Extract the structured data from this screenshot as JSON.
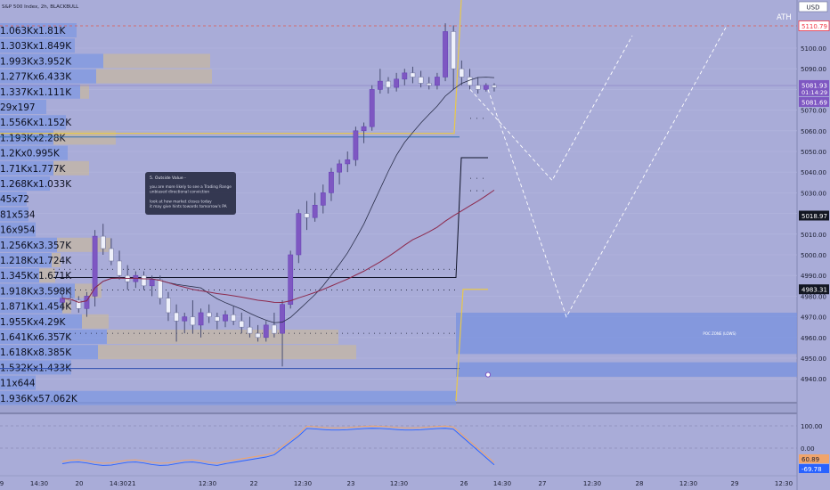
{
  "header": {
    "title": "S&P 500 Index, 2h, BLACKBULL",
    "currency": "USD",
    "ath_label": "ATH"
  },
  "annotation": {
    "title": "5. Outside Value -",
    "lines": [
      "you are more likely to see a Trading Range",
      "unbiased directional conviction",
      "",
      "look at how market closes today",
      "it may give hints towards tomorrow's PA"
    ]
  },
  "poc_zone_label": "POC ZONE (LOWS)",
  "chart_data": {
    "type": "candlestick",
    "title": "S&P 500 Index, 2h, BLACKBULL",
    "ylim": [
      4940,
      5115
    ],
    "price_ticks": [
      5100,
      5090,
      5080,
      5070,
      5060,
      5050,
      5040,
      5030,
      5020,
      5010,
      5000,
      4990,
      4980,
      4970,
      4960,
      4950,
      4940
    ],
    "price_labels": [
      {
        "value": 5110.79,
        "text": "5110.79",
        "color": "#f23645",
        "style": "outline"
      },
      {
        "value": 5081.93,
        "text": "5081.93",
        "sub": "01:14:29",
        "color": "#7e57c2",
        "style": "filled"
      },
      {
        "value": 5081.69,
        "text": "5081.69",
        "color": "#7e57c2",
        "style": "filled"
      },
      {
        "value": 5018.97,
        "text": "5018.97",
        "color": "#131722",
        "style": "filled"
      },
      {
        "value": 4983.31,
        "text": "4983.31",
        "color": "#131722",
        "style": "filled"
      }
    ],
    "time_labels": [
      "9",
      "14:30",
      "20",
      "14:30",
      "21",
      "12:30",
      "22",
      "12:30",
      "23",
      "12:30",
      "26",
      "14:30",
      "27",
      "12:30",
      "28",
      "12:30",
      "29",
      "12:30"
    ],
    "candles": [
      {
        "o": 4977,
        "h": 4981,
        "l": 4973,
        "c": 4979
      },
      {
        "o": 4979,
        "h": 4984,
        "l": 4976,
        "c": 4978
      },
      {
        "o": 4978,
        "h": 4980,
        "l": 4972,
        "c": 4974
      },
      {
        "o": 4974,
        "h": 4982,
        "l": 4970,
        "c": 4980
      },
      {
        "o": 4980,
        "h": 5012,
        "l": 4975,
        "c": 5009
      },
      {
        "o": 5009,
        "h": 5015,
        "l": 5000,
        "c": 5003
      },
      {
        "o": 5003,
        "h": 5008,
        "l": 4995,
        "c": 4997
      },
      {
        "o": 4997,
        "h": 5002,
        "l": 4988,
        "c": 4990
      },
      {
        "o": 4990,
        "h": 4995,
        "l": 4983,
        "c": 4987
      },
      {
        "o": 4987,
        "h": 4992,
        "l": 4984,
        "c": 4990
      },
      {
        "o": 4990,
        "h": 4992,
        "l": 4983,
        "c": 4985
      },
      {
        "o": 4985,
        "h": 4990,
        "l": 4980,
        "c": 4988
      },
      {
        "o": 4988,
        "h": 4990,
        "l": 4976,
        "c": 4979
      },
      {
        "o": 4979,
        "h": 4982,
        "l": 4968,
        "c": 4972
      },
      {
        "o": 4972,
        "h": 4976,
        "l": 4958,
        "c": 4968
      },
      {
        "o": 4968,
        "h": 4972,
        "l": 4962,
        "c": 4970
      },
      {
        "o": 4970,
        "h": 4978,
        "l": 4962,
        "c": 4966
      },
      {
        "o": 4966,
        "h": 4974,
        "l": 4960,
        "c": 4972
      },
      {
        "o": 4972,
        "h": 4976,
        "l": 4967,
        "c": 4970
      },
      {
        "o": 4970,
        "h": 4972,
        "l": 4964,
        "c": 4968
      },
      {
        "o": 4968,
        "h": 4973,
        "l": 4965,
        "c": 4971
      },
      {
        "o": 4971,
        "h": 4975,
        "l": 4966,
        "c": 4968
      },
      {
        "o": 4968,
        "h": 4972,
        "l": 4962,
        "c": 4965
      },
      {
        "o": 4965,
        "h": 4970,
        "l": 4960,
        "c": 4962
      },
      {
        "o": 4962,
        "h": 4966,
        "l": 4958,
        "c": 4960
      },
      {
        "o": 4960,
        "h": 4968,
        "l": 4958,
        "c": 4966
      },
      {
        "o": 4966,
        "h": 4972,
        "l": 4960,
        "c": 4962
      },
      {
        "o": 4962,
        "h": 4978,
        "l": 4946,
        "c": 4976
      },
      {
        "o": 4976,
        "h": 5002,
        "l": 4974,
        "c": 5000
      },
      {
        "o": 5000,
        "h": 5022,
        "l": 4996,
        "c": 5020
      },
      {
        "o": 5020,
        "h": 5026,
        "l": 5012,
        "c": 5018
      },
      {
        "o": 5018,
        "h": 5030,
        "l": 5016,
        "c": 5024
      },
      {
        "o": 5024,
        "h": 5034,
        "l": 5020,
        "c": 5030
      },
      {
        "o": 5030,
        "h": 5042,
        "l": 5026,
        "c": 5040
      },
      {
        "o": 5040,
        "h": 5046,
        "l": 5034,
        "c": 5044
      },
      {
        "o": 5044,
        "h": 5050,
        "l": 5040,
        "c": 5046
      },
      {
        "o": 5046,
        "h": 5062,
        "l": 5043,
        "c": 5060
      },
      {
        "o": 5060,
        "h": 5064,
        "l": 5054,
        "c": 5062
      },
      {
        "o": 5062,
        "h": 5082,
        "l": 5060,
        "c": 5080
      },
      {
        "o": 5080,
        "h": 5090,
        "l": 5078,
        "c": 5084
      },
      {
        "o": 5084,
        "h": 5086,
        "l": 5078,
        "c": 5081
      },
      {
        "o": 5081,
        "h": 5088,
        "l": 5079,
        "c": 5085
      },
      {
        "o": 5085,
        "h": 5090,
        "l": 5082,
        "c": 5088
      },
      {
        "o": 5088,
        "h": 5091,
        "l": 5083,
        "c": 5086
      },
      {
        "o": 5086,
        "h": 5089,
        "l": 5081,
        "c": 5083
      },
      {
        "o": 5083,
        "h": 5086,
        "l": 5080,
        "c": 5082
      },
      {
        "o": 5082,
        "h": 5088,
        "l": 5080,
        "c": 5086
      },
      {
        "o": 5086,
        "h": 5112,
        "l": 5084,
        "c": 5108
      },
      {
        "o": 5108,
        "h": 5111,
        "l": 5080,
        "c": 5090
      },
      {
        "o": 5090,
        "h": 5094,
        "l": 5082,
        "c": 5086
      },
      {
        "o": 5086,
        "h": 5090,
        "l": 5080,
        "c": 5082
      },
      {
        "o": 5082,
        "h": 5086,
        "l": 5078,
        "c": 5080
      },
      {
        "o": 5080,
        "h": 5083,
        "l": 5079,
        "c": 5082
      },
      {
        "o": 5082,
        "h": 5083,
        "l": 5079,
        "c": 5081
      }
    ],
    "volume_profile_labels": [
      "1.063Kx1.81K",
      "1.303Kx1.849K",
      "1.993Kx3.952K",
      "1.277Kx6.433K",
      "1.337Kx1.111K",
      "29x197",
      "1.556Kx1.152K",
      "1.193Kx2.28K",
      "1.2Kx0.995K",
      "1.71Kx1.777K",
      "1.268Kx1.033K",
      "45x72",
      "81x534",
      "16x954",
      "1.256Kx3.357K",
      "1.218Kx1.724K",
      "1.345Kx1.671K",
      "1.918Kx3.598K",
      "1.871Kx1.454K",
      "1.955Kx4.29K",
      "1.641Kx6.357K",
      "1.618Kx8.385K",
      "1.532Kx1.433K",
      "11x644",
      "1.936Kx57.062K"
    ],
    "oscillator": {
      "ticks": [
        100,
        0
      ],
      "readings": [
        {
          "text": "60.89",
          "color": "#f0a46a"
        },
        {
          "text": "-69.78",
          "color": "#2962ff"
        }
      ]
    }
  }
}
